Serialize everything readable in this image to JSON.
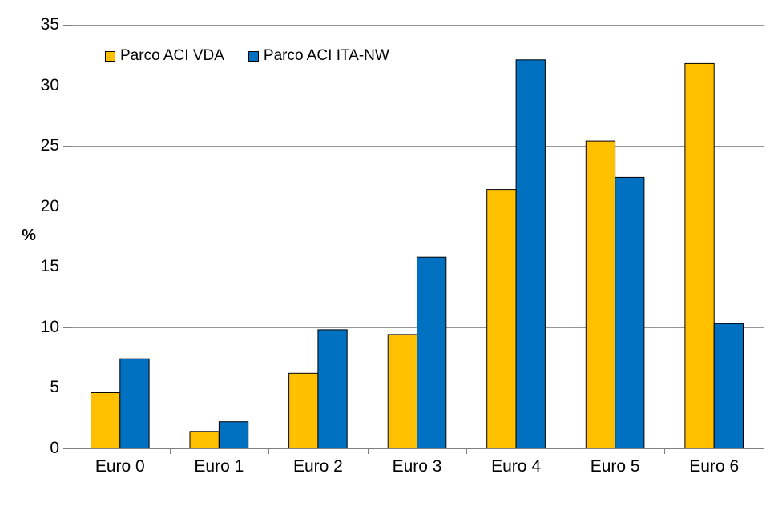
{
  "chart_data": {
    "type": "bar",
    "title": "",
    "xlabel": "",
    "ylabel": "%",
    "categories": [
      "Euro 0",
      "Euro 1",
      "Euro 2",
      "Euro 3",
      "Euro 4",
      "Euro 5",
      "Euro 6"
    ],
    "series": [
      {
        "name": "Parco ACI VDA",
        "color": "#FFC000",
        "values": [
          4.6,
          1.4,
          6.2,
          9.4,
          21.4,
          25.4,
          31.8
        ]
      },
      {
        "name": "Parco ACI ITA-NW",
        "color": "#0070C0",
        "values": [
          7.4,
          2.2,
          9.8,
          15.8,
          32.1,
          22.4,
          10.3
        ]
      }
    ],
    "ylim": [
      0,
      35
    ],
    "ytick_step": 5,
    "yticks": [
      0,
      5,
      10,
      15,
      20,
      25,
      30,
      35
    ],
    "grid": true,
    "legend_position": "top-left-inside",
    "colors": {
      "background": "#FFFFFF",
      "gridline": "#969696",
      "axis": "#808080",
      "bar_border": "#000000",
      "text": "#000000"
    }
  }
}
